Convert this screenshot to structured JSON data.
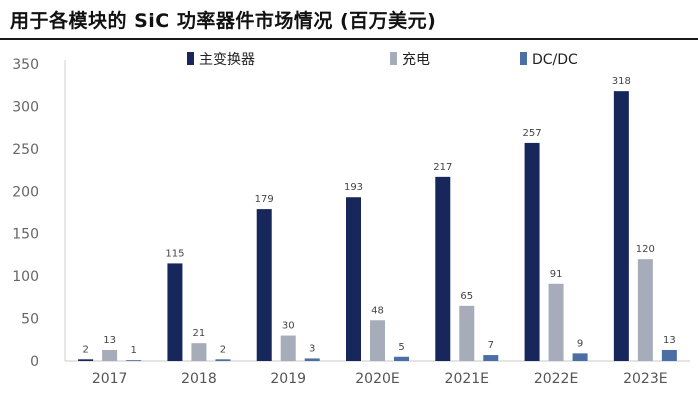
{
  "page": {
    "title": "用于各模块的 SiC 功率器件市场情况 (百万美元)"
  },
  "chart_data": {
    "type": "bar",
    "categories": [
      "2017",
      "2018",
      "2019",
      "2020E",
      "2021E",
      "2022E",
      "2023E"
    ],
    "series": [
      {
        "name": "主变换器",
        "color": "#17275c",
        "values": [
          2,
          115,
          179,
          193,
          217,
          257,
          318
        ]
      },
      {
        "name": "充电",
        "color": "#a6acb9",
        "values": [
          13,
          21,
          30,
          48,
          65,
          91,
          120
        ]
      },
      {
        "name": "DC/DC",
        "color": "#4a6fa5",
        "values": [
          1,
          2,
          3,
          5,
          7,
          9,
          13
        ]
      }
    ],
    "ylim": [
      0,
      350
    ],
    "yticks": [
      0,
      50,
      100,
      150,
      200,
      250,
      300,
      350
    ],
    "legend_position": "top",
    "grid": false,
    "xlabel": "",
    "ylabel": ""
  }
}
